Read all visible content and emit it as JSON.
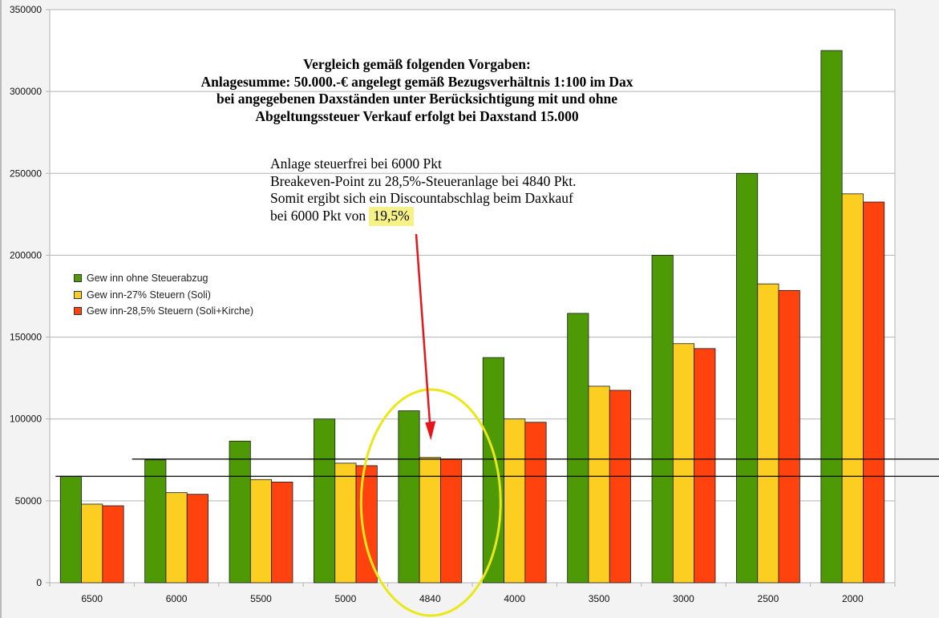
{
  "chart_data": {
    "type": "bar",
    "categories": [
      "6500",
      "6000",
      "5500",
      "5000",
      "4840",
      "4000",
      "3500",
      "3000",
      "2500",
      "2000"
    ],
    "series": [
      {
        "name": "Gew inn ohne Steuerabzug",
        "color": "#4e9a06",
        "values": [
          65000,
          75000,
          86500,
          100000,
          105000,
          137500,
          164500,
          200000,
          250000,
          325000
        ]
      },
      {
        "name": "Gew inn-27% Steuern (Soli)",
        "color": "#fcce22",
        "values": [
          48000,
          55000,
          63000,
          73000,
          76500,
          100000,
          120000,
          146000,
          182500,
          237500
        ]
      },
      {
        "name": "Gew inn-28,5% Steuern (Soli+Kirche)",
        "color": "#ff420e",
        "values": [
          47000,
          54000,
          61500,
          71500,
          75500,
          98000,
          117500,
          143000,
          178500,
          232500
        ]
      }
    ],
    "ylim": [
      0,
      350000
    ],
    "yticks": [
      "0",
      "50000",
      "100000",
      "150000",
      "200000",
      "250000",
      "300000",
      "350000"
    ],
    "grid": true,
    "legend_position": "left-middle",
    "title_lines": [
      "Vergleich gemäß folgenden Vorgaben:",
      "Anlagesumme: 50.000.-€ angelegt gemäß Bezugsverhältnis 1:100 im Dax",
      "bei angegebenen Daxständen unter Berücksichtigung mit und ohne",
      "Abgeltungssteuer Verkauf erfolgt bei Daxstand 15.000"
    ],
    "annotation_lines": [
      "Anlage steuerfrei bei 6000 Pkt",
      "Breakeven-Point zu 28,5%-Steueranlage bei 4840 Pkt.",
      "Somit ergibt sich ein Discountabschlag beim Daxkauf"
    ],
    "annotation_last_prefix": "bei 6000 Pkt von ",
    "annotation_highlight": "19,5%",
    "highlight_color": "#f7f287",
    "reference_lines": [
      75500,
      65000
    ],
    "circled_category": "4840",
    "circle_color": "#e8e81a",
    "arrow_color": "#e8141a",
    "arrow_target": {
      "category": "4840",
      "value": 87000
    }
  }
}
